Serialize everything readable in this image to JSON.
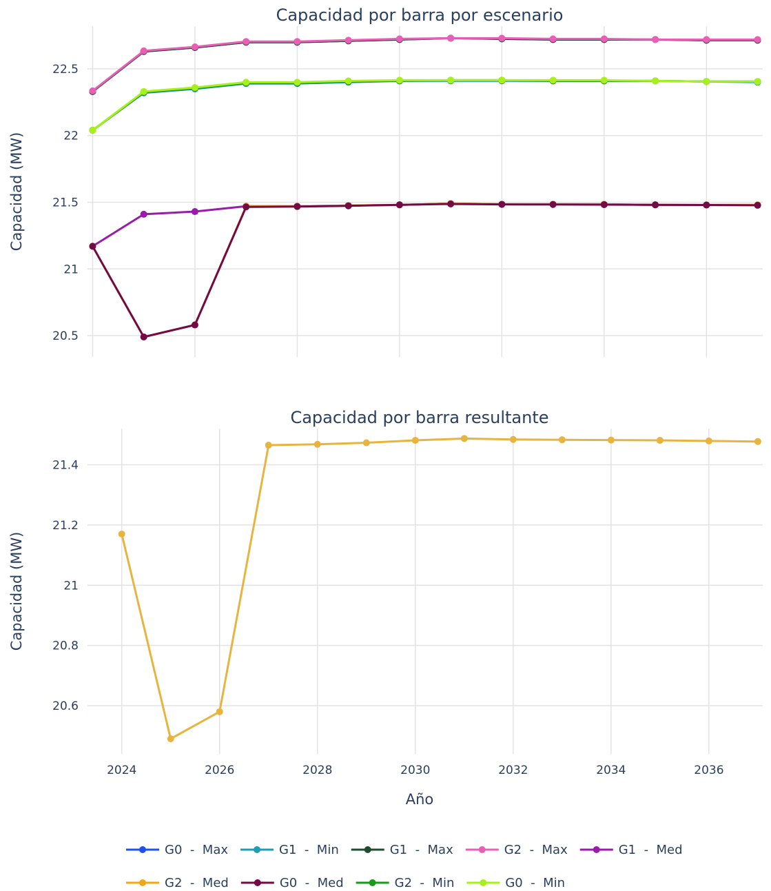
{
  "chart_data": [
    {
      "type": "line",
      "title": "Capacidad por barra por escenario",
      "xlabel": "",
      "ylabel": "Capacidad (MW)",
      "x": [
        2024,
        2025,
        2026,
        2027,
        2028,
        2029,
        2030,
        2031,
        2032,
        2033,
        2034,
        2035,
        2036,
        2037
      ],
      "xlim": [
        2023.9,
        2037.1
      ],
      "ylim": [
        20.34,
        22.82
      ],
      "yticks": [
        20.5,
        21,
        21.5,
        22,
        22.5
      ],
      "ytick_labels": [
        "20.5",
        "21",
        "21.5",
        "22",
        "22.5"
      ],
      "grid": true,
      "series": [
        {
          "name": "G0  -  Max",
          "color": "#1f4ff0",
          "values": [
            22.33,
            22.63,
            22.66,
            22.7,
            22.7,
            22.71,
            22.72,
            22.73,
            22.725,
            22.72,
            22.72,
            22.72,
            22.715,
            22.715
          ]
        },
        {
          "name": "G1  -  Min",
          "color": "#1f9bb4",
          "values": [
            22.04,
            22.32,
            22.35,
            22.39,
            22.39,
            22.4,
            22.41,
            22.41,
            22.41,
            22.41,
            22.41,
            22.41,
            22.405,
            22.4
          ]
        },
        {
          "name": "G1  -  Max",
          "color": "#1d4d2e",
          "values": [
            22.33,
            22.63,
            22.66,
            22.7,
            22.7,
            22.71,
            22.72,
            22.73,
            22.725,
            22.72,
            22.72,
            22.72,
            22.715,
            22.715
          ]
        },
        {
          "name": "G2  -  Max",
          "color": "#e85fb5",
          "values": [
            22.335,
            22.635,
            22.665,
            22.705,
            22.705,
            22.715,
            22.725,
            22.73,
            22.73,
            22.725,
            22.725,
            22.72,
            22.72,
            22.72
          ]
        },
        {
          "name": "G1  -  Med",
          "color": "#9a1aac",
          "values": [
            21.17,
            21.41,
            21.43,
            21.47,
            21.47,
            21.475,
            21.48,
            21.49,
            21.485,
            21.485,
            21.485,
            21.48,
            21.48,
            21.48
          ]
        },
        {
          "name": "G2  -  Med",
          "color": "#f0a818",
          "values": [
            21.17,
            20.49,
            20.58,
            21.47,
            21.47,
            21.475,
            21.48,
            21.49,
            21.485,
            21.485,
            21.485,
            21.48,
            21.48,
            21.48
          ]
        },
        {
          "name": "G0  -  Med",
          "color": "#720a45",
          "values": [
            21.17,
            20.49,
            20.58,
            21.465,
            21.468,
            21.473,
            21.481,
            21.487,
            21.484,
            21.483,
            21.482,
            21.481,
            21.479,
            21.477
          ]
        },
        {
          "name": "G2  -  Min",
          "color": "#1a9a1a",
          "values": [
            22.04,
            22.325,
            22.355,
            22.395,
            22.395,
            22.405,
            22.41,
            22.415,
            22.415,
            22.41,
            22.41,
            22.41,
            22.405,
            22.405
          ]
        },
        {
          "name": "G0  -  Min",
          "color": "#a8ef1e",
          "values": [
            22.04,
            22.33,
            22.36,
            22.4,
            22.4,
            22.41,
            22.415,
            22.415,
            22.415,
            22.415,
            22.415,
            22.41,
            22.405,
            22.405
          ]
        }
      ]
    },
    {
      "type": "line",
      "title": "Capacidad por barra resultante",
      "xlabel": "Año",
      "ylabel": "Capacidad (MW)",
      "x": [
        2024,
        2025,
        2026,
        2027,
        2028,
        2029,
        2030,
        2031,
        2032,
        2033,
        2034,
        2035,
        2036,
        2037
      ],
      "xlim": [
        2023.3,
        2037.1
      ],
      "xticks": [
        2024,
        2026,
        2028,
        2030,
        2032,
        2034,
        2036
      ],
      "xtick_labels": [
        "2024",
        "2026",
        "2028",
        "2030",
        "2032",
        "2034",
        "2036"
      ],
      "ylim": [
        20.44,
        21.52
      ],
      "yticks": [
        20.6,
        20.8,
        21,
        21.2,
        21.4
      ],
      "ytick_labels": [
        "20.6",
        "20.8",
        "21",
        "21.2",
        "21.4"
      ],
      "grid": true,
      "series": [
        {
          "color": "#e8b440",
          "values": [
            21.17,
            20.49,
            20.58,
            21.465,
            21.468,
            21.473,
            21.481,
            21.487,
            21.484,
            21.483,
            21.482,
            21.481,
            21.479,
            21.477
          ]
        }
      ]
    }
  ],
  "legend": {
    "placement": "bottom-center",
    "rows": [
      [
        0,
        1,
        2,
        3,
        4
      ],
      [
        5,
        6,
        7,
        8
      ]
    ]
  }
}
